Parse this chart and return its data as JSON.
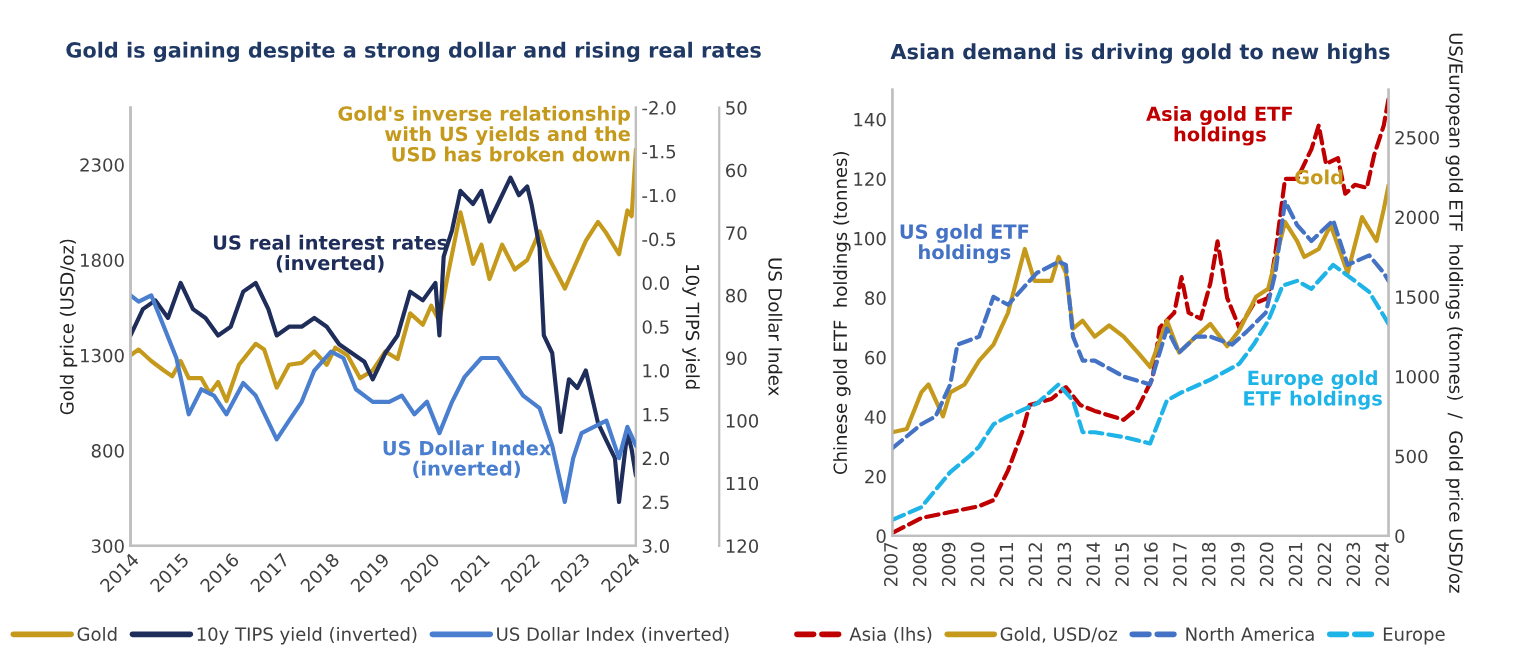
{
  "chart_data": [
    {
      "type": "line",
      "title": "Gold is gaining despite a strong dollar and rising real rates",
      "ylabel": "Gold price (USD/oz)",
      "y2label": "10y TIPS yield",
      "y3label": "US Dollar Index",
      "xlim": [
        "2014-01",
        "2024-02"
      ],
      "xticks": [
        "2014",
        "2015",
        "2016",
        "2017",
        "2018",
        "2019",
        "2020",
        "2021",
        "2022",
        "2023",
        "2024"
      ],
      "ylim": [
        300,
        2600
      ],
      "yticks": [
        300,
        800,
        1300,
        1800,
        2300
      ],
      "y2lim": [
        3.0,
        -2.0
      ],
      "y2ticks": [
        {
          "value": -2.0,
          "label": "-2.0"
        },
        {
          "value": -1.5,
          "label": "-1.5"
        },
        {
          "value": -1.0,
          "label": "-1.0"
        },
        {
          "value": -0.5,
          "label": "-0.5"
        },
        {
          "value": 0.0,
          "label": "0.0"
        },
        {
          "value": 0.5,
          "label": "0.5"
        },
        {
          "value": 1.0,
          "label": "1.0"
        },
        {
          "value": 1.5,
          "label": "1.5"
        },
        {
          "value": 2.0,
          "label": "2.0"
        },
        {
          "value": 2.5,
          "label": "2.5"
        },
        {
          "value": 3.0,
          "label": "3.0"
        }
      ],
      "y3lim": [
        120,
        50
      ],
      "y3ticks": [
        50,
        60,
        70,
        80,
        90,
        100,
        110,
        120
      ],
      "grid": false,
      "legend": "bottom",
      "line_style": "solid",
      "series": [
        {
          "name": "Gold",
          "color": "#c59a1c",
          "axis": "y",
          "x": [
            "2014-01",
            "2014-03",
            "2014-06",
            "2014-09",
            "2014-11",
            "2015-01",
            "2015-03",
            "2015-06",
            "2015-08",
            "2015-10",
            "2015-12",
            "2016-03",
            "2016-07",
            "2016-09",
            "2016-12",
            "2017-03",
            "2017-06",
            "2017-09",
            "2017-12",
            "2018-02",
            "2018-05",
            "2018-08",
            "2018-11",
            "2019-02",
            "2019-05",
            "2019-08",
            "2019-11",
            "2020-01",
            "2020-03",
            "2020-05",
            "2020-08",
            "2020-11",
            "2021-01",
            "2021-03",
            "2021-06",
            "2021-09",
            "2021-12",
            "2022-03",
            "2022-05",
            "2022-09",
            "2022-11",
            "2023-02",
            "2023-05",
            "2023-07",
            "2023-10",
            "2023-12",
            "2024-01",
            "2024-02"
          ],
          "values": [
            1300,
            1330,
            1270,
            1220,
            1190,
            1270,
            1180,
            1180,
            1100,
            1160,
            1060,
            1250,
            1360,
            1330,
            1130,
            1250,
            1260,
            1320,
            1250,
            1340,
            1300,
            1180,
            1220,
            1320,
            1280,
            1520,
            1460,
            1560,
            1480,
            1720,
            2050,
            1780,
            1880,
            1700,
            1880,
            1750,
            1800,
            1950,
            1820,
            1650,
            1750,
            1900,
            2000,
            1940,
            1830,
            2060,
            2030,
            2380
          ]
        },
        {
          "name": "10y TIPS yield (inverted)",
          "color": "#1f2d5a",
          "axis": "y2",
          "x": [
            "2014-01",
            "2014-04",
            "2014-07",
            "2014-10",
            "2015-01",
            "2015-04",
            "2015-07",
            "2015-10",
            "2016-01",
            "2016-04",
            "2016-07",
            "2016-10",
            "2016-12",
            "2017-03",
            "2017-06",
            "2017-09",
            "2017-12",
            "2018-03",
            "2018-06",
            "2018-09",
            "2018-11",
            "2019-02",
            "2019-05",
            "2019-08",
            "2019-11",
            "2020-02",
            "2020-03",
            "2020-04",
            "2020-06",
            "2020-08",
            "2020-11",
            "2021-01",
            "2021-03",
            "2021-05",
            "2021-08",
            "2021-10",
            "2021-12",
            "2022-01",
            "2022-03",
            "2022-04",
            "2022-06",
            "2022-08",
            "2022-10",
            "2022-12",
            "2023-02",
            "2023-05",
            "2023-07",
            "2023-09",
            "2023-10",
            "2023-12",
            "2024-01",
            "2024-02"
          ],
          "values": [
            0.6,
            0.3,
            0.2,
            0.4,
            0.0,
            0.3,
            0.4,
            0.6,
            0.5,
            0.1,
            0.0,
            0.3,
            0.6,
            0.5,
            0.5,
            0.4,
            0.5,
            0.7,
            0.8,
            0.9,
            1.1,
            0.8,
            0.6,
            0.1,
            0.2,
            0.0,
            0.6,
            -0.3,
            -0.6,
            -1.05,
            -0.9,
            -1.05,
            -0.7,
            -0.9,
            -1.2,
            -1.0,
            -1.1,
            -0.9,
            -0.4,
            0.6,
            0.8,
            1.7,
            1.1,
            1.2,
            1.0,
            1.6,
            1.8,
            2.0,
            2.5,
            1.7,
            1.9,
            2.2
          ]
        },
        {
          "name": "US Dollar Index (inverted)",
          "color": "#4a7fd0",
          "axis": "y3",
          "x": [
            "2014-01",
            "2014-03",
            "2014-06",
            "2014-09",
            "2014-12",
            "2015-03",
            "2015-06",
            "2015-09",
            "2015-12",
            "2016-04",
            "2016-07",
            "2016-12",
            "2017-03",
            "2017-06",
            "2017-09",
            "2018-01",
            "2018-04",
            "2018-07",
            "2018-11",
            "2019-03",
            "2019-06",
            "2019-09",
            "2019-12",
            "2020-03",
            "2020-06",
            "2020-09",
            "2021-01",
            "2021-05",
            "2021-08",
            "2021-11",
            "2022-03",
            "2022-06",
            "2022-09",
            "2022-11",
            "2023-01",
            "2023-04",
            "2023-07",
            "2023-10",
            "2023-12",
            "2024-02"
          ],
          "values": [
            80,
            81,
            80,
            85,
            90,
            99,
            95,
            96,
            99,
            94,
            96,
            103,
            100,
            97,
            92,
            89,
            90,
            95,
            97,
            97,
            96,
            99,
            97,
            102,
            97,
            93,
            90,
            90,
            93,
            96,
            98,
            104,
            113,
            106,
            102,
            101,
            100,
            106,
            101,
            104
          ]
        }
      ],
      "annotations": [
        "Gold's inverse relationship\nwith US yields and the\nUSD has broken down",
        "US real interest rates\n(inverted)",
        "US Dollar Index\n(inverted)"
      ]
    },
    {
      "type": "line",
      "title": "Asian demand is driving gold to new highs",
      "ylabel": "Chinese gold ETF  holdings (tonnes)",
      "y2label": "US/European gold ETF  holdings (tonnes)  /  Gold price USD/oz",
      "xlim": [
        "2007-01",
        "2024-03"
      ],
      "xticks": [
        "2007",
        "2008",
        "2009",
        "2010",
        "2011",
        "2012",
        "2013",
        "2014",
        "2015",
        "2016",
        "2017",
        "2018",
        "2019",
        "2020",
        "2021",
        "2022",
        "2023",
        "2024"
      ],
      "ylim": [
        0,
        150
      ],
      "yticks": [
        0,
        20,
        40,
        60,
        80,
        100,
        120,
        140
      ],
      "y2lim": [
        0,
        2800
      ],
      "y2ticks": [
        0,
        500,
        1000,
        1500,
        2000,
        2500
      ],
      "grid": false,
      "legend": "bottom",
      "series": [
        {
          "name": "Asia (lhs)",
          "color": "#c00000",
          "axis": "y",
          "line_style": "dashed",
          "x": [
            "2007-01",
            "2008-01",
            "2009-01",
            "2010-01",
            "2010-07",
            "2011-01",
            "2011-07",
            "2011-10",
            "2012-07",
            "2013-01",
            "2013-07",
            "2014-01",
            "2015-01",
            "2015-07",
            "2016-01",
            "2016-04",
            "2016-10",
            "2017-01",
            "2017-04",
            "2017-09",
            "2018-01",
            "2018-04",
            "2018-08",
            "2019-01",
            "2019-07",
            "2020-01",
            "2020-04",
            "2020-08",
            "2021-01",
            "2021-07",
            "2021-10",
            "2022-01",
            "2022-06",
            "2022-09",
            "2023-01",
            "2023-06",
            "2023-09",
            "2024-01",
            "2024-03"
          ],
          "values": [
            1,
            6,
            8,
            10,
            12,
            22,
            35,
            44,
            46,
            50,
            44,
            42,
            39,
            43,
            53,
            70,
            75,
            87,
            75,
            73,
            85,
            99,
            80,
            70,
            78,
            80,
            95,
            120,
            120,
            130,
            138,
            125,
            127,
            115,
            118,
            117,
            128,
            138,
            147
          ]
        },
        {
          "name": "Gold, USD/oz",
          "color": "#c59a1c",
          "axis": "y2",
          "line_style": "solid",
          "x": [
            "2007-01",
            "2007-07",
            "2008-01",
            "2008-04",
            "2008-10",
            "2009-01",
            "2009-07",
            "2010-01",
            "2010-07",
            "2011-01",
            "2011-08",
            "2011-12",
            "2012-07",
            "2012-10",
            "2013-01",
            "2013-04",
            "2013-08",
            "2014-01",
            "2014-07",
            "2015-01",
            "2015-07",
            "2015-12",
            "2016-07",
            "2016-12",
            "2017-07",
            "2018-01",
            "2018-08",
            "2019-01",
            "2019-08",
            "2020-01",
            "2020-08",
            "2021-01",
            "2021-04",
            "2021-10",
            "2022-03",
            "2022-10",
            "2023-04",
            "2023-10",
            "2024-01",
            "2024-03"
          ],
          "values": [
            650,
            670,
            900,
            950,
            750,
            900,
            950,
            1100,
            1200,
            1400,
            1800,
            1600,
            1600,
            1750,
            1650,
            1300,
            1350,
            1250,
            1320,
            1250,
            1150,
            1060,
            1350,
            1150,
            1250,
            1330,
            1190,
            1290,
            1500,
            1550,
            1970,
            1850,
            1750,
            1800,
            1950,
            1650,
            2000,
            1850,
            2050,
            2200
          ]
        },
        {
          "name": "North America",
          "color": "#4472c4",
          "axis": "y2",
          "line_style": "dashed",
          "x": [
            "2007-01",
            "2008-01",
            "2008-07",
            "2009-01",
            "2009-04",
            "2010-01",
            "2010-07",
            "2011-01",
            "2011-07",
            "2012-01",
            "2012-10",
            "2013-01",
            "2013-04",
            "2013-08",
            "2014-01",
            "2015-01",
            "2015-12",
            "2016-07",
            "2016-12",
            "2017-07",
            "2018-01",
            "2018-10",
            "2019-04",
            "2019-12",
            "2020-04",
            "2020-08",
            "2021-01",
            "2021-07",
            "2022-04",
            "2022-10",
            "2023-07",
            "2024-01",
            "2024-03"
          ],
          "values": [
            550,
            700,
            750,
            950,
            1200,
            1250,
            1500,
            1450,
            1550,
            1650,
            1720,
            1700,
            1250,
            1100,
            1100,
            1000,
            950,
            1300,
            1150,
            1250,
            1250,
            1200,
            1280,
            1400,
            1650,
            2100,
            1950,
            1850,
            1980,
            1700,
            1760,
            1650,
            1600
          ]
        },
        {
          "name": "Europe",
          "color": "#1fb4e8",
          "axis": "y2",
          "line_style": "dashed",
          "x": [
            "2007-01",
            "2008-01",
            "2009-01",
            "2009-09",
            "2010-01",
            "2010-07",
            "2011-01",
            "2012-01",
            "2012-10",
            "2013-04",
            "2013-08",
            "2014-01",
            "2015-01",
            "2015-12",
            "2016-07",
            "2017-01",
            "2018-01",
            "2019-01",
            "2019-07",
            "2020-01",
            "2020-07",
            "2021-01",
            "2021-07",
            "2022-04",
            "2023-01",
            "2023-07",
            "2024-01",
            "2024-03"
          ],
          "values": [
            100,
            180,
            400,
            500,
            560,
            700,
            750,
            830,
            950,
            850,
            650,
            650,
            620,
            580,
            850,
            900,
            980,
            1080,
            1200,
            1350,
            1570,
            1600,
            1550,
            1700,
            1600,
            1530,
            1380,
            1330
          ]
        }
      ],
      "annotations": [
        "Asia gold ETF\nholdings",
        "US gold ETF\nholdings",
        "Gold",
        "Europe gold\nETF holdings"
      ]
    }
  ]
}
